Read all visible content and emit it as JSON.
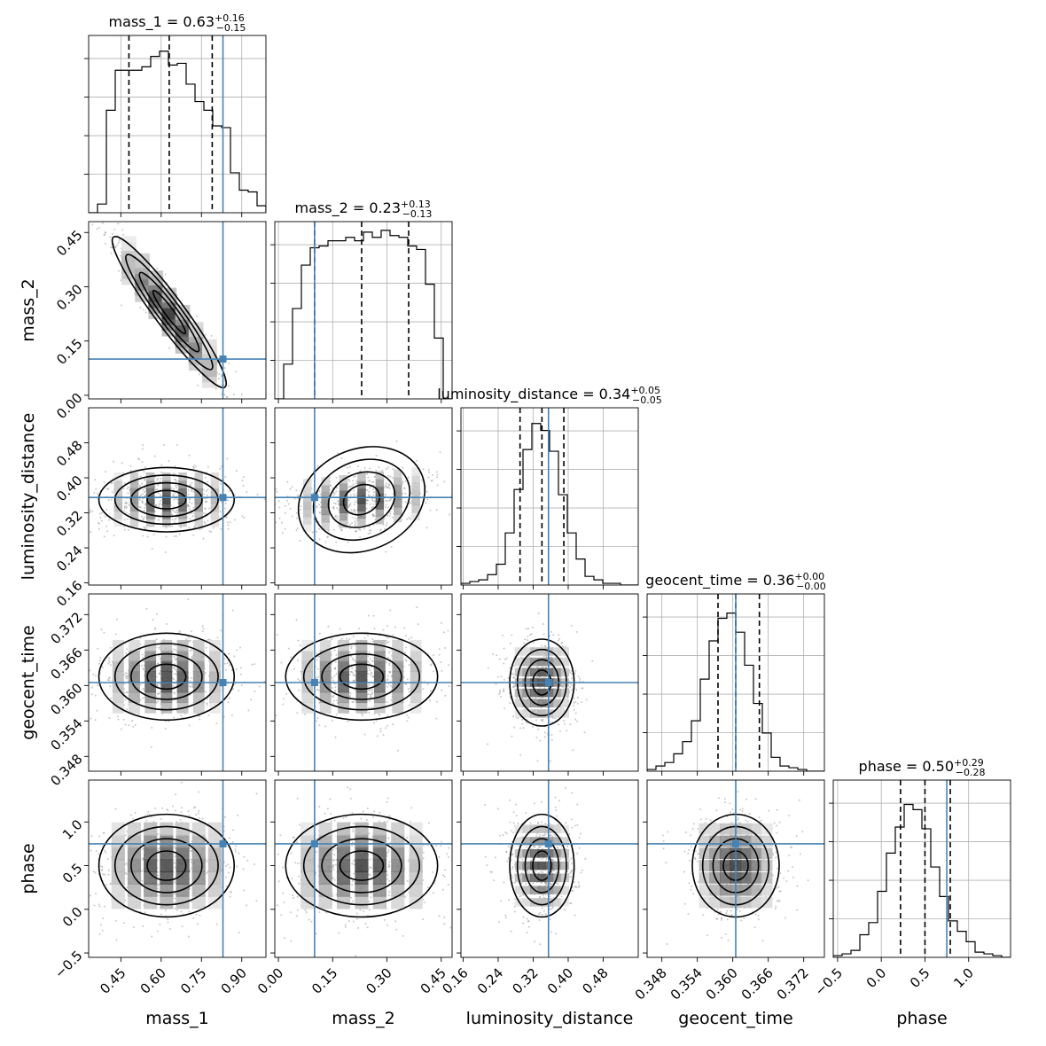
{
  "chart_data": {
    "type": "corner",
    "parameters": [
      "mass_1",
      "mass_2",
      "luminosity_distance",
      "geocent_time",
      "phase"
    ],
    "axis_labels": [
      "mass_1",
      "mass_2",
      "luminosity_distance",
      "geocent_time",
      "phase"
    ],
    "ranges": [
      [
        0.33,
        0.99
      ],
      [
        -0.01,
        0.48
      ],
      [
        0.155,
        0.56
      ],
      [
        0.3455,
        0.3755
      ],
      [
        -0.55,
        1.48
      ]
    ],
    "x_ticks": [
      {
        "values": [
          0.45,
          0.6,
          0.75,
          0.9
        ],
        "labels": [
          "0.45",
          "0.60",
          "0.75",
          "0.90"
        ]
      },
      {
        "values": [
          0.0,
          0.15,
          0.3,
          0.45
        ],
        "labels": [
          "0.00",
          "0.15",
          "0.30",
          "0.45"
        ]
      },
      {
        "values": [
          0.16,
          0.24,
          0.32,
          0.4,
          0.48
        ],
        "labels": [
          "0.16",
          "0.24",
          "0.32",
          "0.40",
          "0.48"
        ]
      },
      {
        "values": [
          0.348,
          0.354,
          0.36,
          0.366,
          0.372
        ],
        "labels": [
          "0.348",
          "0.354",
          "0.360",
          "0.366",
          "0.372"
        ]
      },
      {
        "values": [
          -0.5,
          0.0,
          0.5,
          1.0
        ],
        "labels": [
          "−0.5",
          "0.0",
          "0.5",
          "1.0"
        ]
      }
    ],
    "y_ticks": [
      null,
      {
        "values": [
          0.0,
          0.15,
          0.3,
          0.45
        ],
        "labels": [
          "0.00",
          "0.15",
          "0.30",
          "0.45"
        ]
      },
      {
        "values": [
          0.16,
          0.24,
          0.32,
          0.4,
          0.48
        ],
        "labels": [
          "0.16",
          "0.24",
          "0.32",
          "0.40",
          "0.48"
        ]
      },
      {
        "values": [
          0.348,
          0.354,
          0.36,
          0.366,
          0.372
        ],
        "labels": [
          "0.348",
          "0.354",
          "0.360",
          "0.366",
          "0.372"
        ]
      },
      {
        "values": [
          -0.5,
          0.0,
          0.5,
          1.0
        ],
        "labels": [
          "−0.5",
          "0.0",
          "0.5",
          "1.0"
        ]
      }
    ],
    "titles": [
      {
        "name": "mass_1",
        "median": "0.63",
        "plus": "+0.16",
        "minus": "−0.15"
      },
      {
        "name": "mass_2",
        "median": "0.23",
        "plus": "+0.13",
        "minus": "−0.13"
      },
      {
        "name": "luminosity_distance",
        "median": "0.34",
        "plus": "+0.05",
        "minus": "−0.05"
      },
      {
        "name": "geocent_time",
        "median": "0.36",
        "plus": "+0.00",
        "minus": "−0.00"
      },
      {
        "name": "phase",
        "median": "0.50",
        "plus": "+0.29",
        "minus": "−0.28"
      }
    ],
    "quantiles": [
      [
        0.48,
        0.63,
        0.79
      ],
      [
        0.1,
        0.23,
        0.36
      ],
      [
        0.29,
        0.34,
        0.39
      ],
      [
        0.3575,
        0.3605,
        0.3645
      ],
      [
        0.22,
        0.5,
        0.79
      ]
    ],
    "truths": [
      0.83,
      0.1,
      0.355,
      0.3605,
      0.75
    ],
    "histograms": [
      [
        0.0,
        0.05,
        0.59,
        0.82,
        0.82,
        0.82,
        0.84,
        0.9,
        0.93,
        0.85,
        0.86,
        0.74,
        0.64,
        0.59,
        0.5,
        0.49,
        0.23,
        0.13,
        0.12,
        0.04
      ],
      [
        0.0,
        0.2,
        0.52,
        0.77,
        0.87,
        0.88,
        0.91,
        0.91,
        0.93,
        0.91,
        0.96,
        0.93,
        0.97,
        0.94,
        0.93,
        0.88,
        0.86,
        0.66,
        0.35,
        0.0
      ],
      [
        0.01,
        0.02,
        0.03,
        0.06,
        0.12,
        0.3,
        0.55,
        0.78,
        0.93,
        0.89,
        0.77,
        0.52,
        0.3,
        0.15,
        0.05,
        0.03,
        0.01,
        0.01,
        0.0,
        0.0
      ],
      [
        0.01,
        0.03,
        0.05,
        0.1,
        0.17,
        0.29,
        0.53,
        0.75,
        0.88,
        0.91,
        0.8,
        0.61,
        0.39,
        0.22,
        0.08,
        0.03,
        0.02,
        0.01,
        0.0,
        0.0
      ],
      [
        0.01,
        0.02,
        0.04,
        0.13,
        0.2,
        0.38,
        0.6,
        0.75,
        0.88,
        0.85,
        0.74,
        0.52,
        0.35,
        0.21,
        0.15,
        0.09,
        0.03,
        0.02,
        0.01,
        0.0
      ]
    ],
    "pairs": [
      {
        "row": 1,
        "col": 0,
        "center": [
          0.63,
          0.23
        ],
        "sd": [
          0.1,
          0.1
        ],
        "rho": -0.95
      },
      {
        "row": 2,
        "col": 0,
        "center": [
          0.62,
          0.35
        ],
        "sd": [
          0.12,
          0.035
        ],
        "rho": 0.0
      },
      {
        "row": 2,
        "col": 1,
        "center": [
          0.23,
          0.35
        ],
        "sd": [
          0.1,
          0.035
        ],
        "rho": 0.25
      },
      {
        "row": 3,
        "col": 0,
        "center": [
          0.62,
          0.3615
        ],
        "sd": [
          0.12,
          0.0035
        ],
        "rho": 0.0
      },
      {
        "row": 3,
        "col": 1,
        "center": [
          0.23,
          0.3615
        ],
        "sd": [
          0.1,
          0.0035
        ],
        "rho": 0.0
      },
      {
        "row": 3,
        "col": 2,
        "center": [
          0.34,
          0.3605
        ],
        "sd": [
          0.035,
          0.0035
        ],
        "rho": 0.0
      },
      {
        "row": 4,
        "col": 0,
        "center": [
          0.62,
          0.5
        ],
        "sd": [
          0.12,
          0.28
        ],
        "rho": 0.0
      },
      {
        "row": 4,
        "col": 1,
        "center": [
          0.23,
          0.5
        ],
        "sd": [
          0.1,
          0.28
        ],
        "rho": 0.0
      },
      {
        "row": 4,
        "col": 2,
        "center": [
          0.34,
          0.5
        ],
        "sd": [
          0.035,
          0.28
        ],
        "rho": 0.0
      },
      {
        "row": 4,
        "col": 3,
        "center": [
          0.3605,
          0.5
        ],
        "sd": [
          0.0035,
          0.28
        ],
        "rho": 0.0
      }
    ],
    "grid": true,
    "truth_color": "#4682b4",
    "hist_color": "#000000",
    "density_color": "#000000"
  }
}
